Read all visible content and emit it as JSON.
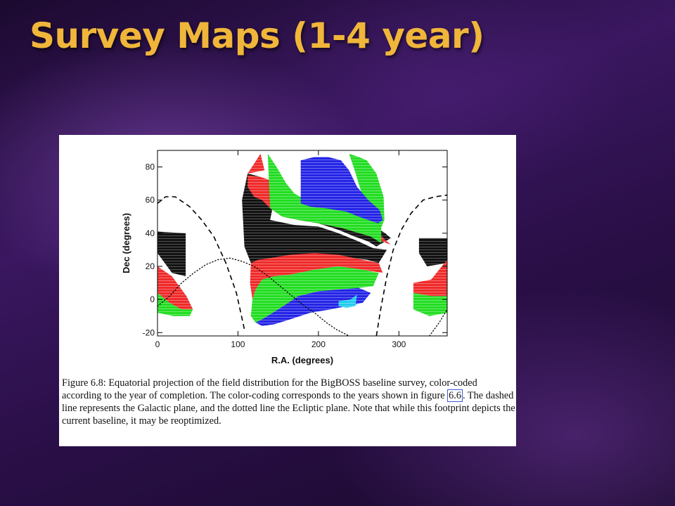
{
  "slide": {
    "title": "Survey Maps (1-4 year)"
  },
  "caption": {
    "part1": "Figure 6.8: Equatorial projection of the field distribution for the BigBOSS baseline survey, color-coded according to the year of completion. The color-coding corresponds to the years shown in figure ",
    "figure_ref": "6.6",
    "part2": ". The dashed line represents the Galactic plane, and the dotted line the Ecliptic plane. Note that while this footprint depicts the current baseline, it may be reoptimized."
  },
  "colors": {
    "title": "#f0b63a",
    "black": "#111111",
    "red": "#ef2a2a",
    "green": "#22dd22",
    "blue": "#2424e6",
    "cyan": "#22ccee"
  },
  "chart_data": {
    "type": "scatter",
    "xlabel": "R.A. (degrees)",
    "ylabel": "Dec (degrees)",
    "xlim": [
      0,
      360
    ],
    "ylim": [
      -22,
      90
    ],
    "xticks": [
      0,
      100,
      200,
      300
    ],
    "yticks": [
      -20,
      0,
      20,
      40,
      60,
      80
    ],
    "grid": false,
    "legend": "none",
    "series": [
      {
        "color": "black",
        "polygons": [
          [
            [
              105,
              60
            ],
            [
              115,
              66
            ],
            [
              130,
              60
            ],
            [
              150,
              52
            ],
            [
              175,
              48
            ],
            [
              200,
              46
            ],
            [
              225,
              42
            ],
            [
              245,
              38
            ],
            [
              262,
              35
            ],
            [
              272,
              32
            ],
            [
              290,
              37
            ],
            [
              283,
              40
            ],
            [
              270,
              44
            ],
            [
              250,
              48
            ],
            [
              220,
              49
            ],
            [
              190,
              51
            ],
            [
              165,
              53
            ],
            [
              145,
              60
            ],
            [
              128,
              74
            ],
            [
              112,
              76
            ]
          ],
          [
            [
              105,
              60
            ],
            [
              112,
              76
            ],
            [
              128,
              74
            ],
            [
              145,
              60
            ],
            [
              140,
              48
            ],
            [
              170,
              45
            ],
            [
              200,
              44
            ],
            [
              225,
              40
            ],
            [
              250,
              35
            ],
            [
              268,
              31
            ],
            [
              285,
              30
            ],
            [
              275,
              22
            ],
            [
              260,
              24
            ],
            [
              225,
              26
            ],
            [
              190,
              27
            ],
            [
              160,
              26
            ],
            [
              140,
              25
            ],
            [
              125,
              22
            ],
            [
              116,
              22
            ],
            [
              108,
              32
            ]
          ],
          [
            [
              0,
              41
            ],
            [
              35,
              40
            ],
            [
              35,
              14
            ],
            [
              18,
              16
            ],
            [
              0,
              28
            ]
          ],
          [
            [
              325,
              37
            ],
            [
              360,
              37
            ],
            [
              360,
              22
            ],
            [
              335,
              20
            ],
            [
              325,
              28
            ]
          ]
        ]
      },
      {
        "color": "red",
        "polygons": [
          [
            [
              112,
              75
            ],
            [
              128,
              74
            ],
            [
              140,
              72
            ],
            [
              140,
              68
            ],
            [
              152,
              62
            ],
            [
              165,
              58
            ],
            [
              185,
              56
            ],
            [
              205,
              54
            ],
            [
              230,
              51
            ],
            [
              250,
              46
            ],
            [
              265,
              42
            ],
            [
              275,
              40
            ],
            [
              283,
              36
            ],
            [
              290,
              33
            ],
            [
              265,
              38
            ],
            [
              230,
              43
            ],
            [
              200,
              46
            ],
            [
              175,
              48
            ],
            [
              155,
              50
            ],
            [
              140,
              55
            ],
            [
              130,
              60
            ],
            [
              120,
              62
            ],
            [
              112,
              68
            ]
          ],
          [
            [
              112,
              76
            ],
            [
              128,
              88
            ],
            [
              133,
              78
            ]
          ],
          [
            [
              116,
              22
            ],
            [
              125,
              24
            ],
            [
              140,
              25
            ],
            [
              165,
              27
            ],
            [
              195,
              28
            ],
            [
              225,
              27
            ],
            [
              255,
              24
            ],
            [
              275,
              22
            ],
            [
              280,
              16
            ],
            [
              255,
              18
            ],
            [
              225,
              20
            ],
            [
              195,
              18
            ],
            [
              165,
              15
            ],
            [
              145,
              14
            ],
            [
              130,
              12
            ],
            [
              122,
              6
            ],
            [
              118,
              0
            ],
            [
              115,
              10
            ]
          ],
          [
            [
              0,
              20
            ],
            [
              18,
              14
            ],
            [
              36,
              2
            ],
            [
              44,
              -6
            ],
            [
              30,
              -6
            ],
            [
              15,
              -2
            ],
            [
              0,
              4
            ]
          ],
          [
            [
              318,
              10
            ],
            [
              340,
              12
            ],
            [
              360,
              24
            ],
            [
              360,
              2
            ],
            [
              340,
              2
            ],
            [
              318,
              4
            ]
          ]
        ]
      },
      {
        "color": "green",
        "polygons": [
          [
            [
              137,
              88
            ],
            [
              148,
              80
            ],
            [
              160,
              70
            ],
            [
              170,
              64
            ],
            [
              185,
              60
            ],
            [
              205,
              58
            ],
            [
              230,
              56
            ],
            [
              255,
              50
            ],
            [
              270,
              46
            ],
            [
              278,
              46
            ],
            [
              278,
              34
            ],
            [
              265,
              38
            ],
            [
              230,
              43
            ],
            [
              200,
              46
            ],
            [
              175,
              48
            ],
            [
              155,
              50
            ],
            [
              140,
              55
            ]
          ],
          [
            [
              238,
              88
            ],
            [
              250,
              86
            ],
            [
              260,
              84
            ],
            [
              272,
              76
            ],
            [
              281,
              62
            ],
            [
              282,
              48
            ],
            [
              275,
              40
            ],
            [
              265,
              46
            ],
            [
              255,
              50
            ],
            [
              255,
              62
            ],
            [
              245,
              78
            ]
          ],
          [
            [
              118,
              0
            ],
            [
              122,
              6
            ],
            [
              130,
              12
            ],
            [
              145,
              14
            ],
            [
              165,
              15
            ],
            [
              195,
              18
            ],
            [
              225,
              20
            ],
            [
              255,
              18
            ],
            [
              275,
              16
            ],
            [
              268,
              8
            ],
            [
              250,
              7
            ],
            [
              225,
              6
            ],
            [
              200,
              5
            ],
            [
              175,
              2
            ],
            [
              150,
              -6
            ],
            [
              130,
              -12
            ],
            [
              122,
              -14
            ],
            [
              116,
              -10
            ]
          ],
          [
            [
              0,
              4
            ],
            [
              15,
              -2
            ],
            [
              30,
              -6
            ],
            [
              44,
              -6
            ],
            [
              40,
              -10
            ],
            [
              20,
              -10
            ],
            [
              0,
              -8
            ]
          ],
          [
            [
              318,
              4
            ],
            [
              340,
              2
            ],
            [
              360,
              2
            ],
            [
              360,
              -8
            ],
            [
              338,
              -10
            ],
            [
              318,
              -6
            ]
          ]
        ]
      },
      {
        "color": "blue",
        "polygons": [
          [
            [
              178,
              84
            ],
            [
              195,
              86
            ],
            [
              212,
              86
            ],
            [
              228,
              84
            ],
            [
              238,
              78
            ],
            [
              248,
              68
            ],
            [
              262,
              60
            ],
            [
              276,
              54
            ],
            [
              280,
              48
            ],
            [
              274,
              46
            ],
            [
              262,
              48
            ],
            [
              250,
              50
            ],
            [
              235,
              53
            ],
            [
              210,
              55
            ],
            [
              190,
              56
            ],
            [
              178,
              58
            ]
          ],
          [
            [
              122,
              -14
            ],
            [
              130,
              -12
            ],
            [
              150,
              -6
            ],
            [
              175,
              2
            ],
            [
              200,
              5
            ],
            [
              225,
              6
            ],
            [
              250,
              7
            ],
            [
              265,
              4
            ],
            [
              255,
              -2
            ],
            [
              235,
              -4
            ],
            [
              215,
              -6
            ],
            [
              190,
              -8
            ],
            [
              165,
              -12
            ],
            [
              145,
              -15
            ],
            [
              130,
              -16
            ]
          ]
        ]
      },
      {
        "color": "cyan",
        "polygons": [
          [
            [
              225,
              -1
            ],
            [
              240,
              0
            ],
            [
              248,
              3
            ],
            [
              246,
              -4
            ],
            [
              235,
              -5
            ],
            [
              225,
              -4
            ]
          ]
        ]
      }
    ],
    "galactic_plane_dashed": [
      [
        [
          0,
          58
        ],
        [
          10,
          62
        ],
        [
          22,
          62
        ],
        [
          40,
          56
        ],
        [
          55,
          48
        ],
        [
          70,
          38
        ],
        [
          85,
          22
        ],
        [
          98,
          4
        ],
        [
          108,
          -18
        ]
      ],
      [
        [
          272,
          -22
        ],
        [
          278,
          -4
        ],
        [
          285,
          14
        ],
        [
          293,
          30
        ],
        [
          303,
          42
        ],
        [
          315,
          52
        ],
        [
          330,
          60
        ],
        [
          345,
          62
        ],
        [
          360,
          63
        ]
      ]
    ],
    "ecliptic_plane_dotted": [
      [
        [
          0,
          -4
        ],
        [
          15,
          2
        ],
        [
          30,
          10
        ],
        [
          45,
          16
        ],
        [
          60,
          21
        ],
        [
          75,
          24
        ],
        [
          90,
          25
        ],
        [
          105,
          23
        ],
        [
          120,
          20
        ],
        [
          135,
          15
        ],
        [
          150,
          9
        ],
        [
          165,
          3
        ],
        [
          180,
          -3
        ],
        [
          195,
          -8
        ],
        [
          210,
          -14
        ],
        [
          222,
          -18
        ],
        [
          238,
          -22
        ]
      ],
      [
        [
          338,
          -22
        ],
        [
          350,
          -14
        ],
        [
          360,
          -6
        ]
      ]
    ]
  }
}
